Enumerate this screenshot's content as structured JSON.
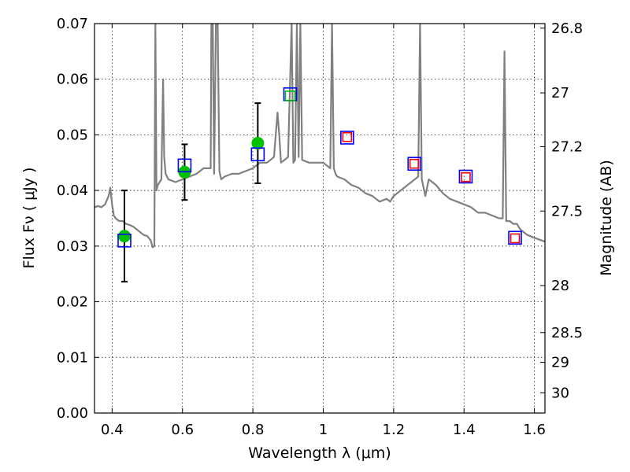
{
  "chart_data": {
    "type": "scatter",
    "title": "",
    "xlabel": "Wavelength  λ (μm)",
    "ylabel": "Flux  Fν  ( μJy )",
    "ylabel_right": "Magnitude (AB)",
    "xlim": [
      0.35,
      1.63
    ],
    "ylim": [
      0.0,
      0.07
    ],
    "grid": true,
    "x_ticks": [
      0.4,
      0.6,
      0.8,
      1.0,
      1.2,
      1.4,
      1.6
    ],
    "x_tick_labels": [
      "0.4",
      "0.6",
      "0.8",
      "1",
      "1.2",
      "1.4",
      "1.6"
    ],
    "y_ticks": [
      0.0,
      0.01,
      0.02,
      0.03,
      0.04,
      0.05,
      0.06,
      0.07
    ],
    "y_tick_labels": [
      "0.00",
      "0.01",
      "0.02",
      "0.03",
      "0.04",
      "0.05",
      "0.06",
      "0.07"
    ],
    "right_axis_magnitudes": [
      26.8,
      27,
      27.2,
      27.5,
      28,
      28.5,
      29,
      30
    ],
    "right_axis_labels": [
      "26.8",
      "27",
      "27.2",
      "27.5",
      "28",
      "28.5",
      "29",
      "30"
    ],
    "series": [
      {
        "kind": "line",
        "color": "#808080",
        "x": [
          0.35,
          0.36,
          0.37,
          0.38,
          0.39,
          0.395,
          0.4,
          0.405,
          0.41,
          0.42,
          0.43,
          0.44,
          0.45,
          0.46,
          0.47,
          0.48,
          0.49,
          0.5,
          0.51,
          0.515,
          0.52,
          0.523,
          0.526,
          0.53,
          0.54,
          0.545,
          0.548,
          0.552,
          0.56,
          0.58,
          0.6,
          0.62,
          0.64,
          0.66,
          0.68,
          0.682,
          0.686,
          0.69,
          0.695,
          0.7,
          0.705,
          0.71,
          0.72,
          0.74,
          0.76,
          0.78,
          0.8,
          0.82,
          0.84,
          0.86,
          0.87,
          0.875,
          0.88,
          0.89,
          0.9,
          0.91,
          0.915,
          0.92,
          0.925,
          0.93,
          0.935,
          0.94,
          0.96,
          0.98,
          1.0,
          1.02,
          1.025,
          1.03,
          1.035,
          1.04,
          1.06,
          1.08,
          1.1,
          1.12,
          1.14,
          1.16,
          1.18,
          1.19,
          1.2,
          1.22,
          1.24,
          1.26,
          1.27,
          1.275,
          1.28,
          1.29,
          1.3,
          1.32,
          1.34,
          1.36,
          1.38,
          1.4,
          1.42,
          1.44,
          1.46,
          1.48,
          1.5,
          1.51,
          1.515,
          1.52,
          1.53,
          1.54,
          1.55,
          1.56,
          1.58,
          1.6,
          1.63
        ],
        "y": [
          0.037,
          0.0372,
          0.037,
          0.0375,
          0.039,
          0.0405,
          0.0375,
          0.0355,
          0.035,
          0.0345,
          0.0345,
          0.034,
          0.0338,
          0.0335,
          0.033,
          0.0325,
          0.032,
          0.0318,
          0.031,
          0.0298,
          0.03,
          0.07,
          0.04,
          0.041,
          0.042,
          0.06,
          0.046,
          0.043,
          0.042,
          0.0415,
          0.042,
          0.0425,
          0.043,
          0.044,
          0.044,
          0.07,
          0.07,
          0.043,
          0.07,
          0.07,
          0.0435,
          0.042,
          0.0425,
          0.043,
          0.043,
          0.0435,
          0.044,
          0.045,
          0.045,
          0.046,
          0.054,
          0.05,
          0.045,
          0.0455,
          0.046,
          0.07,
          0.045,
          0.0455,
          0.07,
          0.046,
          0.07,
          0.0455,
          0.045,
          0.045,
          0.045,
          0.044,
          0.07,
          0.044,
          0.043,
          0.0425,
          0.042,
          0.041,
          0.0405,
          0.0395,
          0.039,
          0.038,
          0.0385,
          0.038,
          0.039,
          0.04,
          0.041,
          0.042,
          0.0425,
          0.07,
          0.042,
          0.039,
          0.042,
          0.041,
          0.0395,
          0.0385,
          0.038,
          0.0375,
          0.037,
          0.036,
          0.036,
          0.0355,
          0.035,
          0.035,
          0.065,
          0.0345,
          0.0345,
          0.034,
          0.034,
          0.033,
          0.032,
          0.0315,
          0.0308
        ]
      },
      {
        "kind": "points",
        "color": "#00c000",
        "x": [
          0.435,
          0.606,
          0.814
        ],
        "y": [
          0.0318,
          0.0433,
          0.0485
        ],
        "yerr": [
          0.0082,
          0.005,
          0.0072
        ]
      },
      {
        "kind": "squares",
        "color": "#0000ff",
        "x": [
          0.435,
          0.606,
          0.814,
          0.906,
          1.068,
          1.259,
          1.405,
          1.545
        ],
        "y": [
          0.031,
          0.0445,
          0.0465,
          0.0573,
          0.0495,
          0.0448,
          0.0425,
          0.0315
        ]
      },
      {
        "kind": "squares",
        "color": "#00c000",
        "x": [
          0.906
        ],
        "y": [
          0.057
        ]
      },
      {
        "kind": "squares",
        "color": "#ff0000",
        "x": [
          1.068,
          1.259,
          1.405,
          1.545
        ],
        "y": [
          0.0496,
          0.0448,
          0.0424,
          0.0314
        ]
      }
    ]
  }
}
